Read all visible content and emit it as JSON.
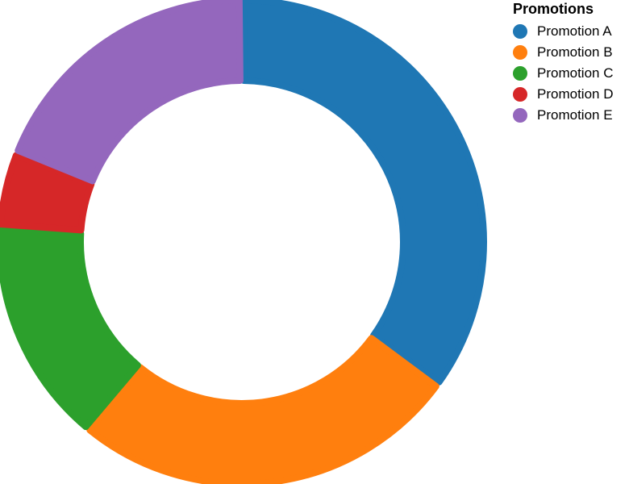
{
  "chart_data": {
    "type": "pie",
    "style": "donut",
    "legend": {
      "title": "Promotions",
      "position": "top-right"
    },
    "series": [
      {
        "name": "Promotion A",
        "value": 35.0,
        "color": "#1f77b4"
      },
      {
        "name": "Promotion B",
        "value": 26.0,
        "color": "#ff7f0e"
      },
      {
        "name": "Promotion C",
        "value": 15.0,
        "color": "#2ca02c"
      },
      {
        "name": "Promotion D",
        "value": 5.0,
        "color": "#d62728"
      },
      {
        "name": "Promotion E",
        "value": 19.0,
        "color": "#9467bd"
      }
    ]
  }
}
